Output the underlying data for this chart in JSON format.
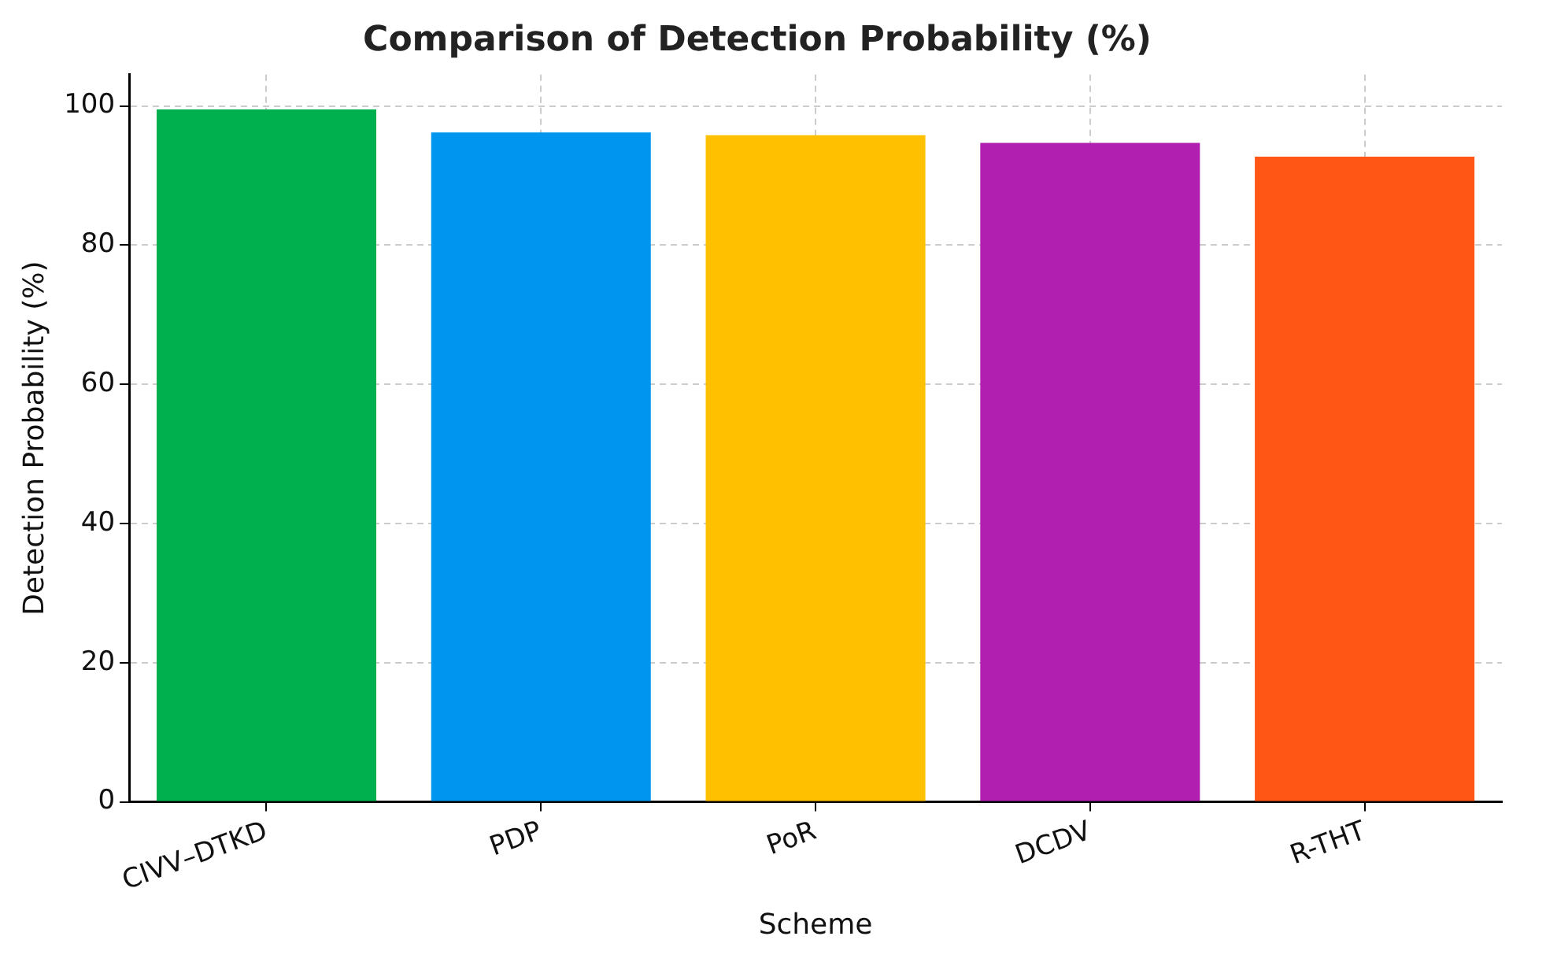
{
  "chart_data": {
    "type": "bar",
    "title": "Comparison of Detection Probability (%)",
    "xlabel": "Scheme",
    "ylabel": "Detection Probability (%)",
    "categories": [
      "CIVV–DTKD",
      "PDP",
      "PoR",
      "DCDV",
      "R-THT"
    ],
    "values": [
      99.5,
      96.2,
      95.8,
      94.7,
      92.7
    ],
    "colors": [
      "#00b04f",
      "#0096f0",
      "#ffc000",
      "#b01fb0",
      "#ff5515"
    ],
    "ylim": [
      0,
      104.5
    ],
    "yticks": [
      0,
      20,
      40,
      60,
      80,
      100
    ],
    "grid": true,
    "legend": false
  }
}
